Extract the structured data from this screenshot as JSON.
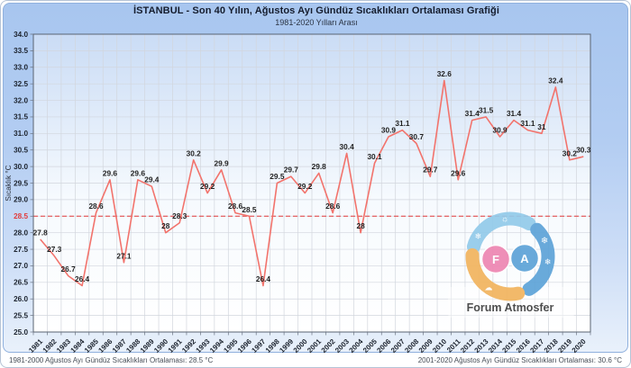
{
  "header": {
    "title": "İSTANBUL - Son 40 Yılın, Ağustos Ayı Gündüz Sıcaklıkları Ortalaması Grafiği",
    "subtitle": "1981-2020 Yılları Arası"
  },
  "chart_data": {
    "type": "line",
    "x": [
      1981,
      1982,
      1983,
      1984,
      1985,
      1986,
      1987,
      1988,
      1989,
      1990,
      1991,
      1992,
      1993,
      1994,
      1995,
      1996,
      1997,
      1998,
      1999,
      2000,
      2001,
      2002,
      2003,
      2004,
      2005,
      2006,
      2007,
      2008,
      2009,
      2010,
      2011,
      2012,
      2013,
      2014,
      2015,
      2016,
      2017,
      2018,
      2019,
      2020
    ],
    "values": [
      27.8,
      27.3,
      26.7,
      26.4,
      28.6,
      29.6,
      27.1,
      29.6,
      29.4,
      28,
      28.3,
      30.2,
      29.2,
      29.9,
      28.6,
      28.5,
      26.4,
      29.5,
      29.7,
      29.2,
      29.8,
      28.6,
      30.4,
      28,
      30.1,
      30.9,
      31.1,
      30.7,
      29.7,
      32.6,
      29.6,
      31.4,
      31.5,
      30.9,
      31.4,
      31.1,
      31,
      32.4,
      30.2,
      30.3
    ],
    "ylabel": "Sıcaklık °C",
    "ylim": [
      25.0,
      34.0
    ],
    "ytick_step": 0.5,
    "grid": true,
    "line_color": "#f2736c",
    "reference_line": {
      "value": 28.5,
      "color": "#e23b3b",
      "style": "dashed"
    }
  },
  "footer": {
    "left": "1981-2000 Ağustos Ayı Gündüz Sıcaklıkları Ortalaması: 28.5 °C",
    "right": "2001-2020 Ağustos Ayı Gündüz Sıcaklıkları Ortalaması: 30.6 °C"
  },
  "watermark": {
    "name": "Forum Atmosfer",
    "letters": [
      "F",
      "A"
    ],
    "icons": [
      "snowflake-icon",
      "sun-icon",
      "cloud-icon"
    ],
    "colors": {
      "pink": "#ee86b2",
      "blue": "#5da3d8",
      "lightblue": "#93cbea",
      "orange": "#f2b45e"
    }
  }
}
